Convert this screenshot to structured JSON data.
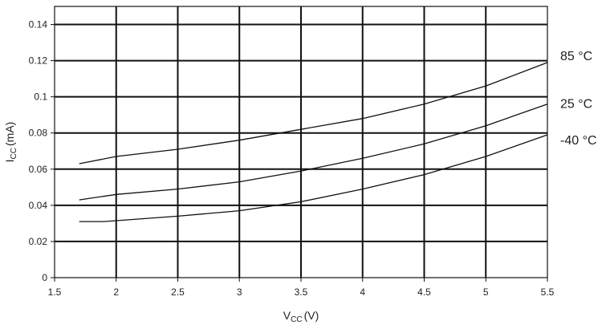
{
  "chart_data": {
    "type": "line",
    "title": "",
    "xlabel": {
      "main": "V",
      "sub": "CC",
      "unit": "(V)"
    },
    "ylabel": {
      "main": "I",
      "sub": "CC",
      "unit": "(mA)"
    },
    "xlim": [
      1.5,
      5.5
    ],
    "ylim": [
      0,
      0.15
    ],
    "xticks": [
      1.5,
      2,
      2.5,
      3,
      3.5,
      4,
      4.5,
      5,
      5.5
    ],
    "xtick_labels": [
      "1.5",
      "2",
      "2.5",
      "3",
      "3.5",
      "4",
      "4.5",
      "5",
      "5.5"
    ],
    "yticks": [
      0,
      0.02,
      0.04,
      0.06,
      0.08,
      0.1,
      0.12,
      0.14
    ],
    "ytick_labels": [
      "0",
      "0.02",
      "0.04",
      "0.06",
      "0.08",
      "0.1",
      "0.12",
      "0.14"
    ],
    "grid": true,
    "series": [
      {
        "name": "85 °C",
        "x": [
          1.7,
          2.0,
          2.5,
          3.0,
          3.5,
          4.0,
          4.5,
          5.0,
          5.5
        ],
        "y": [
          0.063,
          0.067,
          0.071,
          0.076,
          0.082,
          0.088,
          0.096,
          0.106,
          0.119
        ]
      },
      {
        "name": "25 °C",
        "x": [
          1.7,
          2.0,
          2.5,
          3.0,
          3.5,
          4.0,
          4.5,
          5.0,
          5.5
        ],
        "y": [
          0.043,
          0.046,
          0.049,
          0.053,
          0.059,
          0.066,
          0.074,
          0.084,
          0.096
        ]
      },
      {
        "name": "-40 °C",
        "x": [
          1.7,
          1.9,
          2.0,
          2.5,
          3.0,
          3.5,
          4.0,
          4.5,
          5.0,
          5.5
        ],
        "y": [
          0.031,
          0.031,
          0.0315,
          0.034,
          0.037,
          0.042,
          0.049,
          0.057,
          0.067,
          0.079
        ]
      }
    ]
  }
}
